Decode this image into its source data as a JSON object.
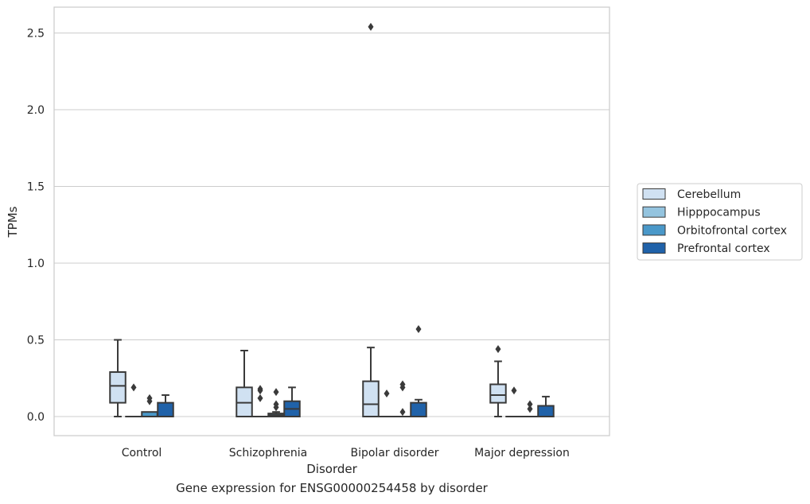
{
  "caption": "Gene expression for ENSG00000254458 by disorder",
  "chart_data": {
    "type": "box",
    "title": "",
    "xlabel": "Disorder",
    "ylabel": "TPMs",
    "ylim": [
      -0.12,
      2.67
    ],
    "yticks": [
      0.0,
      0.5,
      1.0,
      1.5,
      2.0,
      2.5
    ],
    "ytick_labels": [
      "0.0",
      "0.5",
      "1.0",
      "1.5",
      "2.0",
      "2.5"
    ],
    "grid": "horizontal",
    "legend_position": "right",
    "categories": [
      "Control",
      "Schizophrenia",
      "Bipolar disorder",
      "Major depression"
    ],
    "series": [
      {
        "name": "Cerebellum",
        "color": "#d0e1f2",
        "boxes": [
          {
            "q1": 0.09,
            "median": 0.2,
            "q3": 0.29,
            "whislo": 0.0,
            "whishi": 0.5,
            "fliers": []
          },
          {
            "q1": 0.0,
            "median": 0.09,
            "q3": 0.19,
            "whislo": 0.0,
            "whishi": 0.43,
            "fliers": []
          },
          {
            "q1": 0.0,
            "median": 0.08,
            "q3": 0.23,
            "whislo": 0.0,
            "whishi": 0.45,
            "fliers": [
              2.54
            ]
          },
          {
            "q1": 0.09,
            "median": 0.14,
            "q3": 0.21,
            "whislo": 0.0,
            "whishi": 0.36,
            "fliers": [
              0.44
            ]
          }
        ]
      },
      {
        "name": "Hipppocampus",
        "color": "#94c4df",
        "boxes": [
          {
            "q1": 0.0,
            "median": 0.0,
            "q3": 0.0,
            "whislo": 0.0,
            "whishi": 0.0,
            "fliers": [
              0.19
            ]
          },
          {
            "q1": 0.0,
            "median": 0.0,
            "q3": 0.0,
            "whislo": 0.0,
            "whishi": 0.0,
            "fliers": [
              0.12,
              0.17,
              0.18
            ]
          },
          {
            "q1": 0.0,
            "median": 0.0,
            "q3": 0.0,
            "whislo": 0.0,
            "whishi": 0.0,
            "fliers": [
              0.15
            ]
          },
          {
            "q1": 0.0,
            "median": 0.0,
            "q3": 0.0,
            "whislo": 0.0,
            "whishi": 0.0,
            "fliers": [
              0.17
            ]
          }
        ]
      },
      {
        "name": "Orbitofrontal cortex",
        "color": "#4a98c9",
        "boxes": [
          {
            "q1": 0.0,
            "median": 0.0,
            "q3": 0.03,
            "whislo": 0.0,
            "whishi": 0.03,
            "fliers": [
              0.1,
              0.12
            ]
          },
          {
            "q1": 0.0,
            "median": 0.01,
            "q3": 0.02,
            "whislo": 0.0,
            "whishi": 0.03,
            "fliers": [
              0.06,
              0.08,
              0.16
            ]
          },
          {
            "q1": 0.0,
            "median": 0.0,
            "q3": 0.0,
            "whislo": 0.0,
            "whishi": 0.0,
            "fliers": [
              0.03,
              0.19,
              0.21
            ]
          },
          {
            "q1": 0.0,
            "median": 0.0,
            "q3": 0.0,
            "whislo": 0.0,
            "whishi": 0.0,
            "fliers": [
              0.05,
              0.08
            ]
          }
        ]
      },
      {
        "name": "Prefrontal cortex",
        "color": "#2062a9",
        "boxes": [
          {
            "q1": 0.0,
            "median": 0.0,
            "q3": 0.09,
            "whislo": 0.0,
            "whishi": 0.14,
            "fliers": []
          },
          {
            "q1": 0.0,
            "median": 0.05,
            "q3": 0.1,
            "whislo": 0.0,
            "whishi": 0.19,
            "fliers": []
          },
          {
            "q1": 0.0,
            "median": 0.0,
            "q3": 0.09,
            "whislo": 0.0,
            "whishi": 0.11,
            "fliers": [
              0.57
            ]
          },
          {
            "q1": 0.0,
            "median": 0.0,
            "q3": 0.07,
            "whislo": 0.0,
            "whishi": 0.13,
            "fliers": []
          }
        ]
      }
    ]
  }
}
